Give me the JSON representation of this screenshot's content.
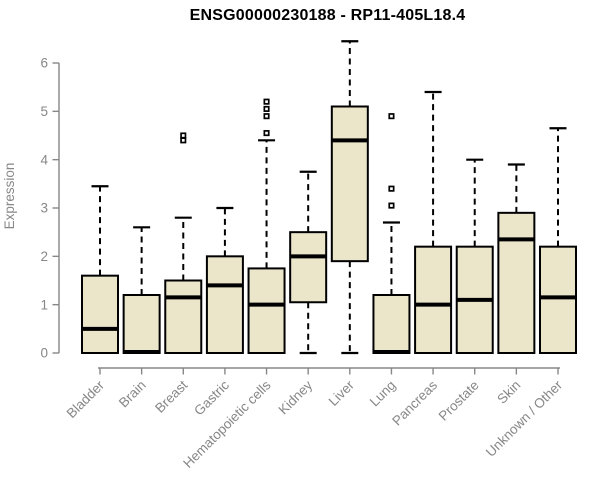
{
  "chart_data": {
    "type": "boxplot",
    "title": "ENSG00000230188 - RP11-405L18.4",
    "ylabel": "Expression",
    "xlabel": "",
    "ylim": [
      0,
      6
    ],
    "yticks": [
      0,
      1,
      2,
      3,
      4,
      5,
      6
    ],
    "grid": false,
    "legend": "none",
    "categories": [
      "Bladder",
      "Brain",
      "Breast",
      "Gastric",
      "Hematopoietic cells",
      "Kidney",
      "Liver",
      "Lung",
      "Pancreas",
      "Prostate",
      "Skin",
      "Unknown / Other"
    ],
    "boxes": [
      {
        "category": "Bladder",
        "whisker_low": 0,
        "q1": 0,
        "median": 0.5,
        "q3": 1.6,
        "whisker_high": 3.45,
        "outliers": []
      },
      {
        "category": "Brain",
        "whisker_low": 0,
        "q1": 0,
        "median": 0.02,
        "q3": 1.2,
        "whisker_high": 2.6,
        "outliers": []
      },
      {
        "category": "Breast",
        "whisker_low": 0,
        "q1": 0,
        "median": 1.15,
        "q3": 1.5,
        "whisker_high": 2.8,
        "outliers": [
          4.4,
          4.5
        ]
      },
      {
        "category": "Gastric",
        "whisker_low": 0,
        "q1": 0,
        "median": 1.4,
        "q3": 2.0,
        "whisker_high": 3.0,
        "outliers": []
      },
      {
        "category": "Hematopoietic cells",
        "whisker_low": 0,
        "q1": 0,
        "median": 1.0,
        "q3": 1.75,
        "whisker_high": 4.4,
        "outliers": [
          4.55,
          4.9,
          5.05,
          5.2
        ]
      },
      {
        "category": "Kidney",
        "whisker_low": 0,
        "q1": 1.05,
        "median": 2.0,
        "q3": 2.5,
        "whisker_high": 3.75,
        "outliers": []
      },
      {
        "category": "Liver",
        "whisker_low": 0,
        "q1": 1.9,
        "median": 4.4,
        "q3": 5.1,
        "whisker_high": 6.45,
        "outliers": []
      },
      {
        "category": "Lung",
        "whisker_low": 0,
        "q1": 0,
        "median": 0.02,
        "q3": 1.2,
        "whisker_high": 2.7,
        "outliers": [
          3.05,
          3.4,
          4.9
        ]
      },
      {
        "category": "Pancreas",
        "whisker_low": 0,
        "q1": 0,
        "median": 1.0,
        "q3": 2.2,
        "whisker_high": 5.4,
        "outliers": []
      },
      {
        "category": "Prostate",
        "whisker_low": 0,
        "q1": 0,
        "median": 1.1,
        "q3": 2.2,
        "whisker_high": 4.0,
        "outliers": []
      },
      {
        "category": "Skin",
        "whisker_low": 0,
        "q1": 0,
        "median": 2.35,
        "q3": 2.9,
        "whisker_high": 3.9,
        "outliers": []
      },
      {
        "category": "Unknown / Other",
        "whisker_low": 0,
        "q1": 0,
        "median": 1.15,
        "q3": 2.2,
        "whisker_high": 4.65,
        "outliers": []
      }
    ],
    "colors": {
      "box_fill": "#EBE6CA",
      "box_stroke": "#000000",
      "median": "#000000",
      "whisker": "#000000",
      "axis": "#878787",
      "tick_text": "#878787",
      "title_text": "#000000",
      "background": "#FFFFFF"
    }
  }
}
